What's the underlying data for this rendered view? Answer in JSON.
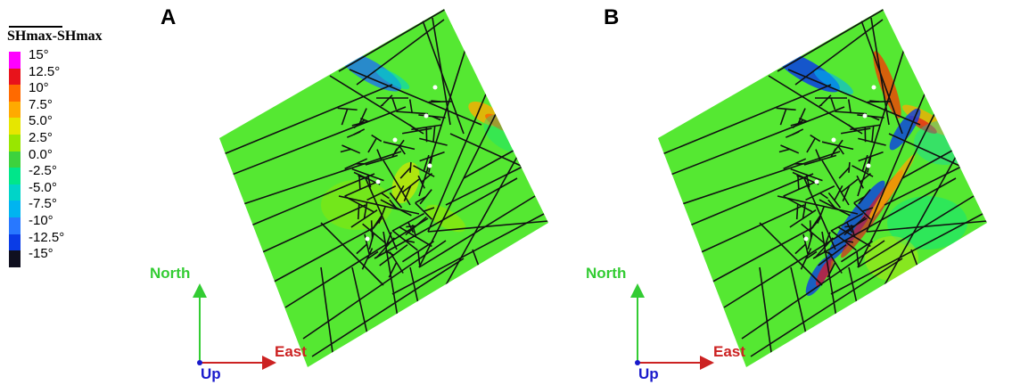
{
  "legend": {
    "title": "SHmax-SHmax",
    "entries": [
      {
        "label": "15°",
        "color": "#ff00ff"
      },
      {
        "label": "12.5°",
        "color": "#e8131b"
      },
      {
        "label": "10°",
        "color": "#ff6a00"
      },
      {
        "label": "7.5°",
        "color": "#ffaa00"
      },
      {
        "label": "5.0°",
        "color": "#e6e600"
      },
      {
        "label": "2.5°",
        "color": "#99e600"
      },
      {
        "label": "0.0°",
        "color": "#3dd23d"
      },
      {
        "label": "-2.5°",
        "color": "#00e68a"
      },
      {
        "label": "-5.0°",
        "color": "#00d4c8"
      },
      {
        "label": "-7.5°",
        "color": "#00b4f0"
      },
      {
        "label": "-10°",
        "color": "#2878ff"
      },
      {
        "label": "-12.5°",
        "color": "#0a3ce6"
      },
      {
        "label": "-15°",
        "color": "#101020"
      }
    ]
  },
  "panels": [
    {
      "label": "A"
    },
    {
      "label": "B"
    }
  ],
  "axes": {
    "north": "North",
    "east": "East",
    "up": "Up",
    "north_color": "#33cc33",
    "east_color": "#cc2222",
    "up_color": "#1a1acc"
  },
  "colors": {
    "field": "#55e832",
    "fault_line": "#111111"
  }
}
